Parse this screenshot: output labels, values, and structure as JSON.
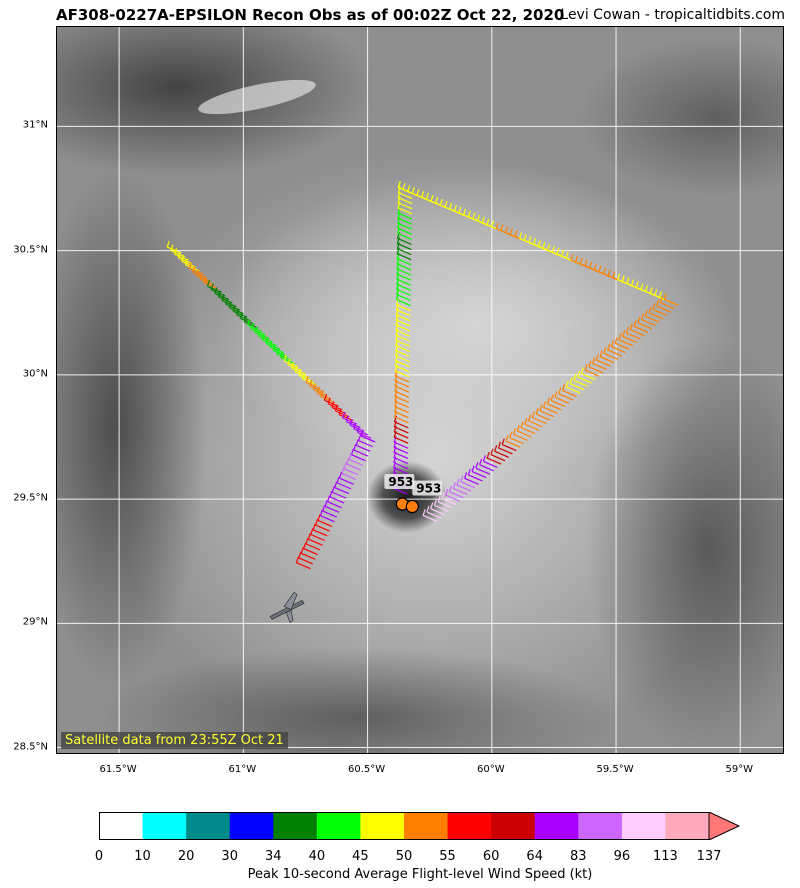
{
  "header": {
    "title": "AF308-0227A-EPSILON Recon Obs as of 00:02Z Oct 22, 2020",
    "credit": "Levi Cowan - tropicaltidbits.com"
  },
  "map": {
    "satellite_label": "Satellite data from 23:55Z Oct 21",
    "lon_ticks": [
      "61.5°W",
      "61°W",
      "60.5°W",
      "60°W",
      "59.5°W",
      "59°W"
    ],
    "lat_ticks": [
      "31°N",
      "30.5°N",
      "30°N",
      "29.5°N",
      "29°N",
      "28.5°N"
    ],
    "pressure_labels": [
      "953",
      "953"
    ],
    "extent": {
      "lon": [
        -61.75,
        -58.82
      ],
      "lat": [
        28.47,
        31.4
      ]
    },
    "flight_legs": [
      {
        "from": [
          -61.25,
          30.49
        ],
        "to": [
          -60.47,
          29.73
        ]
      },
      {
        "from": [
          -60.47,
          29.73
        ],
        "to": [
          -60.73,
          29.22
        ]
      },
      {
        "from": [
          -60.34,
          29.52
        ],
        "to": [
          -60.32,
          30.73
        ]
      },
      {
        "from": [
          -60.32,
          30.73
        ],
        "to": [
          -59.25,
          30.28
        ]
      },
      {
        "from": [
          -59.25,
          30.28
        ],
        "to": [
          -60.22,
          29.41
        ]
      }
    ],
    "center_fixes": [
      [
        -60.36,
        29.48
      ],
      [
        -60.32,
        29.47
      ]
    ],
    "aircraft_position": [
      -60.82,
      29.06
    ]
  },
  "colorbar": {
    "label": "Peak 10-second Average Flight-level Wind Speed (kt)",
    "ticks": [
      "0",
      "10",
      "20",
      "30",
      "34",
      "40",
      "45",
      "50",
      "55",
      "60",
      "64",
      "83",
      "96",
      "113",
      "137"
    ],
    "colors": [
      "#ffffff",
      "#00ffff",
      "#008b8b",
      "#0000ff",
      "#008000",
      "#00ff00",
      "#ffff00",
      "#ff8000",
      "#ff0000",
      "#cc0000",
      "#aa00ff",
      "#cc66ff",
      "#ffccff",
      "#ffaabb",
      "#ff7777"
    ]
  }
}
